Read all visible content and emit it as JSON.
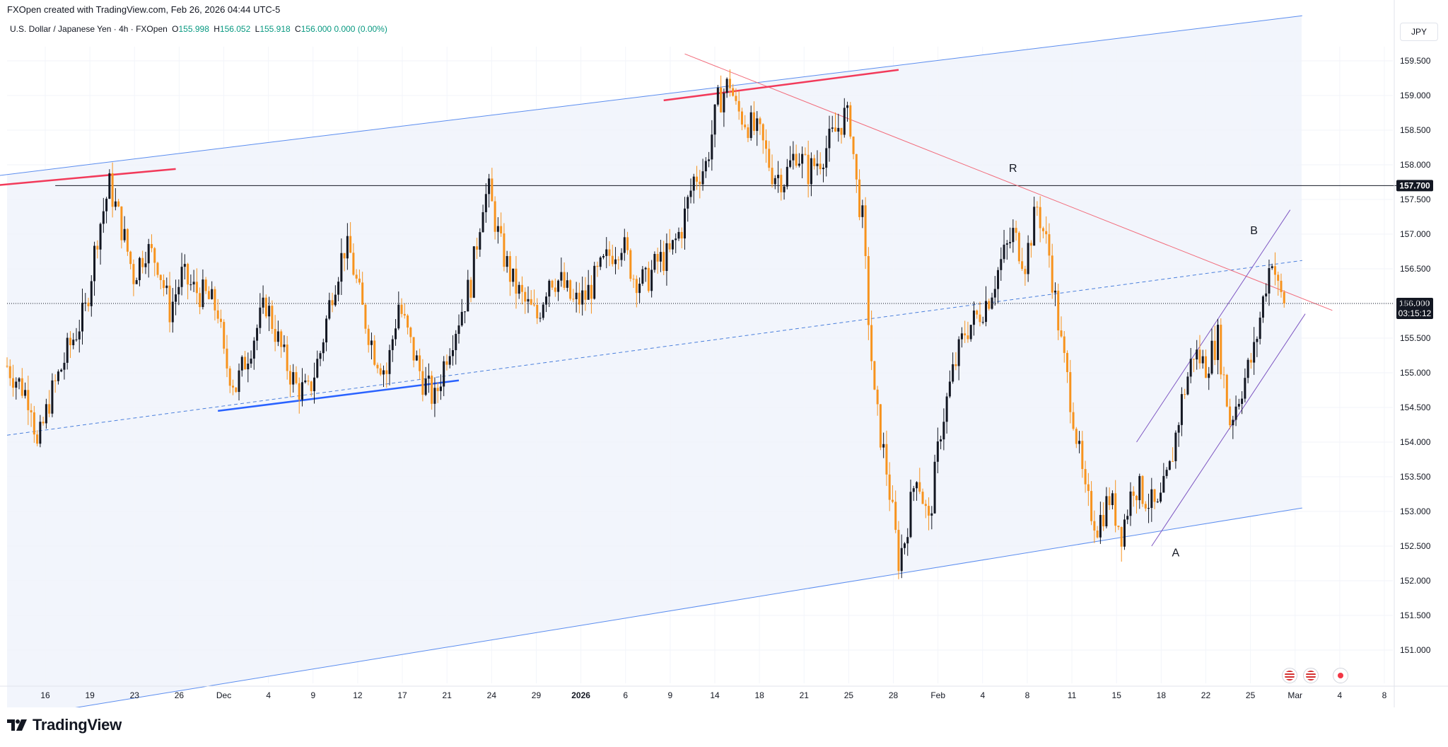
{
  "header": {
    "created_line": "FXOpen created with TradingView.com, Feb 26, 2026 04:44 UTC-5",
    "symbol_line": "U.S. Dollar / Japanese Yen · 4h · FXOpen",
    "ohlc": {
      "o_label": "O",
      "o": "155.998",
      "h_label": "H",
      "h": "156.052",
      "l_label": "L",
      "l": "155.918",
      "c_label": "C",
      "c": "156.000",
      "change": "0.000 (0.00%)"
    },
    "currency": "JPY"
  },
  "footer": {
    "brand": "TradingView"
  },
  "colors": {
    "up": "#131722",
    "down": "#f7931e",
    "channel": "#5b8def",
    "channel_fill": "#eef2fb",
    "resistance": "#f23a5a",
    "trendline_red": "#f26b7a",
    "midline": "#4a7fdc",
    "horizontal": "#131722",
    "purple": "#7e57c2",
    "price_label_bg": "#131722"
  },
  "chart_data": {
    "type": "candlestick",
    "symbol": "U.S. Dollar / Japanese Yen",
    "timeframe": "4h",
    "ylim": [
      150.5,
      160.0
    ],
    "y_ticks": [
      "159.500",
      "159.000",
      "158.500",
      "158.000",
      "157.500",
      "157.000",
      "156.500",
      "156.000",
      "155.500",
      "155.000",
      "154.500",
      "154.000",
      "153.500",
      "153.000",
      "152.500",
      "152.000",
      "151.500",
      "151.000"
    ],
    "x_ticks": [
      {
        "label": "16",
        "bold": false
      },
      {
        "label": "19",
        "bold": false
      },
      {
        "label": "23",
        "bold": false
      },
      {
        "label": "26",
        "bold": false
      },
      {
        "label": "Dec",
        "bold": false
      },
      {
        "label": "4",
        "bold": false
      },
      {
        "label": "9",
        "bold": false
      },
      {
        "label": "12",
        "bold": false
      },
      {
        "label": "17",
        "bold": false
      },
      {
        "label": "21",
        "bold": false
      },
      {
        "label": "24",
        "bold": false
      },
      {
        "label": "29",
        "bold": false
      },
      {
        "label": "2026",
        "bold": true
      },
      {
        "label": "6",
        "bold": false
      },
      {
        "label": "9",
        "bold": false
      },
      {
        "label": "14",
        "bold": false
      },
      {
        "label": "18",
        "bold": false
      },
      {
        "label": "21",
        "bold": false
      },
      {
        "label": "25",
        "bold": false
      },
      {
        "label": "28",
        "bold": false
      },
      {
        "label": "Feb",
        "bold": false
      },
      {
        "label": "4",
        "bold": false
      },
      {
        "label": "8",
        "bold": false
      },
      {
        "label": "11",
        "bold": false
      },
      {
        "label": "15",
        "bold": false
      },
      {
        "label": "18",
        "bold": false
      },
      {
        "label": "22",
        "bold": false
      },
      {
        "label": "25",
        "bold": false
      },
      {
        "label": "Mar",
        "bold": false
      },
      {
        "label": "4",
        "bold": false
      },
      {
        "label": "8",
        "bold": false
      }
    ],
    "price_anchors": [
      [
        0,
        155.1
      ],
      [
        8,
        154.6
      ],
      [
        10,
        153.9
      ],
      [
        14,
        154.6
      ],
      [
        20,
        155.3
      ],
      [
        26,
        155.9
      ],
      [
        30,
        157.0
      ],
      [
        34,
        157.7
      ],
      [
        38,
        157.1
      ],
      [
        42,
        156.4
      ],
      [
        46,
        156.8
      ],
      [
        50,
        156.6
      ],
      [
        54,
        155.9
      ],
      [
        58,
        156.4
      ],
      [
        62,
        156.2
      ],
      [
        66,
        156.1
      ],
      [
        70,
        155.9
      ],
      [
        72,
        155.2
      ],
      [
        76,
        154.8
      ],
      [
        80,
        155.3
      ],
      [
        86,
        156.0
      ],
      [
        92,
        155.2
      ],
      [
        96,
        154.8
      ],
      [
        100,
        154.7
      ],
      [
        104,
        155.3
      ],
      [
        108,
        156.2
      ],
      [
        112,
        156.8
      ],
      [
        114,
        156.7
      ],
      [
        118,
        155.9
      ],
      [
        122,
        155.3
      ],
      [
        126,
        155.0
      ],
      [
        130,
        156.0
      ],
      [
        134,
        155.4
      ],
      [
        138,
        154.9
      ],
      [
        142,
        154.6
      ],
      [
        146,
        155.3
      ],
      [
        150,
        155.8
      ],
      [
        154,
        156.3
      ],
      [
        158,
        157.5
      ],
      [
        160,
        157.6
      ],
      [
        164,
        156.8
      ],
      [
        168,
        156.3
      ],
      [
        172,
        156.0
      ],
      [
        176,
        155.8
      ],
      [
        180,
        156.4
      ],
      [
        184,
        156.3
      ],
      [
        188,
        156.0
      ],
      [
        192,
        156.1
      ],
      [
        196,
        156.4
      ],
      [
        200,
        156.7
      ],
      [
        204,
        156.9
      ],
      [
        208,
        156.4
      ],
      [
        212,
        156.3
      ],
      [
        216,
        156.6
      ],
      [
        220,
        156.7
      ],
      [
        224,
        157.1
      ],
      [
        228,
        157.8
      ],
      [
        232,
        158.0
      ],
      [
        236,
        158.9
      ],
      [
        240,
        159.2
      ],
      [
        242,
        158.8
      ],
      [
        246,
        158.6
      ],
      [
        250,
        158.4
      ],
      [
        254,
        157.9
      ],
      [
        258,
        157.8
      ],
      [
        262,
        158.2
      ],
      [
        266,
        157.9
      ],
      [
        270,
        158.1
      ],
      [
        274,
        158.4
      ],
      [
        278,
        158.7
      ],
      [
        280,
        158.6
      ],
      [
        282,
        157.7
      ],
      [
        284,
        157.2
      ],
      [
        286,
        155.8
      ],
      [
        288,
        154.6
      ],
      [
        292,
        153.6
      ],
      [
        296,
        152.3
      ],
      [
        298,
        152.6
      ],
      [
        302,
        153.6
      ],
      [
        306,
        152.8
      ],
      [
        310,
        154.2
      ],
      [
        314,
        155.0
      ],
      [
        318,
        155.6
      ],
      [
        322,
        155.8
      ],
      [
        326,
        156.1
      ],
      [
        330,
        156.6
      ],
      [
        334,
        157.0
      ],
      [
        338,
        156.6
      ],
      [
        342,
        157.4
      ],
      [
        346,
        156.7
      ],
      [
        350,
        155.4
      ],
      [
        354,
        154.4
      ],
      [
        358,
        153.2
      ],
      [
        362,
        152.8
      ],
      [
        366,
        153.2
      ],
      [
        370,
        152.7
      ],
      [
        374,
        153.4
      ],
      [
        378,
        153.2
      ],
      [
        382,
        153.0
      ],
      [
        386,
        153.6
      ],
      [
        390,
        154.6
      ],
      [
        394,
        155.3
      ],
      [
        398,
        155.1
      ],
      [
        402,
        155.5
      ],
      [
        406,
        154.3
      ],
      [
        410,
        154.8
      ],
      [
        414,
        155.3
      ],
      [
        418,
        156.3
      ],
      [
        420,
        156.7
      ],
      [
        422,
        156.2
      ],
      [
        424,
        156.0
      ]
    ],
    "lines": [
      {
        "name": "channel-upper",
        "points": [
          [
            -30,
            157.7
          ],
          [
            430,
            160.15
          ]
        ]
      },
      {
        "name": "channel-lower",
        "points": [
          [
            20,
            150.15
          ],
          [
            430,
            153.05
          ]
        ]
      },
      {
        "name": "channel-mid",
        "dashed": true,
        "points": [
          [
            0,
            154.1
          ],
          [
            430,
            156.62
          ]
        ]
      },
      {
        "name": "resistance-157700",
        "points": [
          [
            16,
            157.7
          ],
          [
            470,
            157.7
          ]
        ]
      },
      {
        "name": "trendline-red",
        "points": [
          [
            225,
            159.6
          ],
          [
            440,
            155.9
          ]
        ]
      },
      {
        "name": "purple-upper",
        "points": [
          [
            375,
            154.0
          ],
          [
            426,
            157.35
          ]
        ]
      },
      {
        "name": "purple-lower",
        "points": [
          [
            380,
            152.5
          ],
          [
            431,
            155.85
          ]
        ]
      },
      {
        "name": "resistance-mark-1",
        "bold": true,
        "points": [
          [
            -30,
            157.6
          ],
          [
            56,
            157.94
          ]
        ]
      },
      {
        "name": "resistance-mark-2",
        "bold": true,
        "points": [
          [
            218,
            158.93
          ],
          [
            296,
            159.37
          ]
        ]
      },
      {
        "name": "support-mark",
        "bold": true,
        "points": [
          [
            70,
            154.45
          ],
          [
            150,
            154.89
          ]
        ]
      }
    ],
    "labels": [
      {
        "text": "R",
        "at": [
          334,
          157.9
        ]
      },
      {
        "text": "A",
        "at": [
          388,
          152.35
        ]
      },
      {
        "text": "B",
        "at": [
          414,
          157.0
        ]
      }
    ],
    "marked_prices": [
      {
        "value": 157.7,
        "label": "157.700"
      },
      {
        "value": 156.0,
        "label": "156.000",
        "countdown": "03:15:12"
      }
    ]
  }
}
